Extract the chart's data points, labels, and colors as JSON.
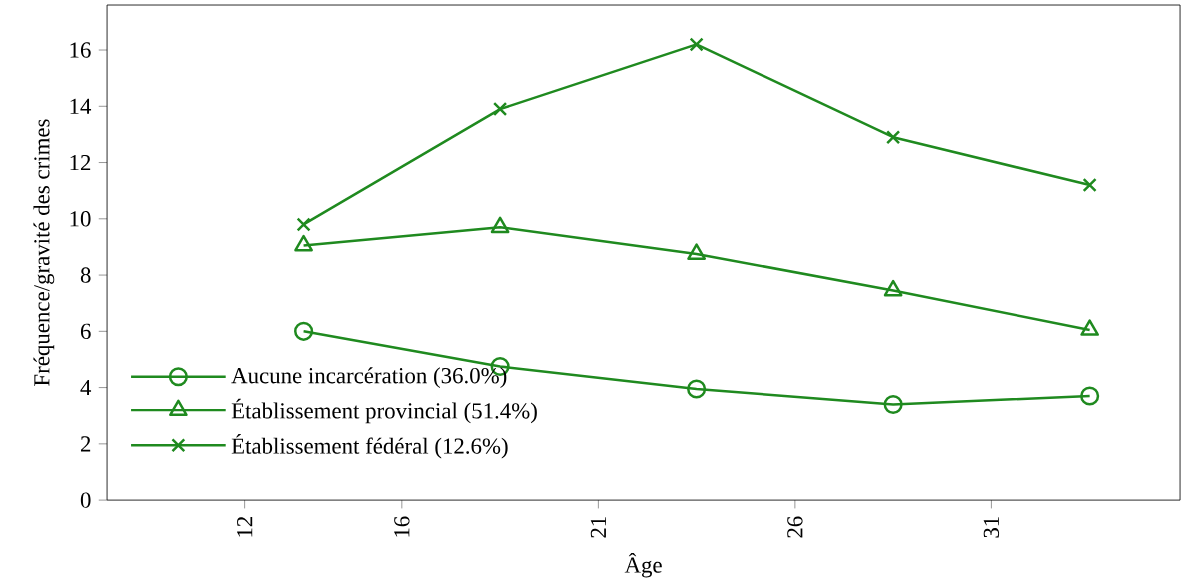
{
  "chart_data": {
    "type": "line",
    "xlabel": "Âge",
    "ylabel": "Fréquence/gravité des crimes",
    "x": [
      13.5,
      18.5,
      23.5,
      28.5,
      33.5
    ],
    "xlim": [
      8.5,
      35.8
    ],
    "xticks": [
      12,
      16,
      21,
      26,
      31
    ],
    "ylim": [
      0,
      17.6
    ],
    "yticks": [
      0,
      2,
      4,
      6,
      8,
      10,
      12,
      14,
      16
    ],
    "grid": false,
    "legend": "bottom left",
    "line_style": "solid",
    "series": [
      {
        "name": "Aucune incarcération (36.0%)",
        "color": "#1f8a1f",
        "marker": "circle",
        "values": [
          6.0,
          4.75,
          3.95,
          3.4,
          3.7
        ]
      },
      {
        "name": "Établissement provincial (51.4%)",
        "color": "#1f8a1f",
        "marker": "triangle",
        "values": [
          9.05,
          9.7,
          8.75,
          7.45,
          6.05
        ]
      },
      {
        "name": "Établissement fédéral (12.6%)",
        "color": "#1f8a1f",
        "marker": "cross",
        "values": [
          9.8,
          13.9,
          16.2,
          12.9,
          11.2
        ]
      }
    ]
  }
}
